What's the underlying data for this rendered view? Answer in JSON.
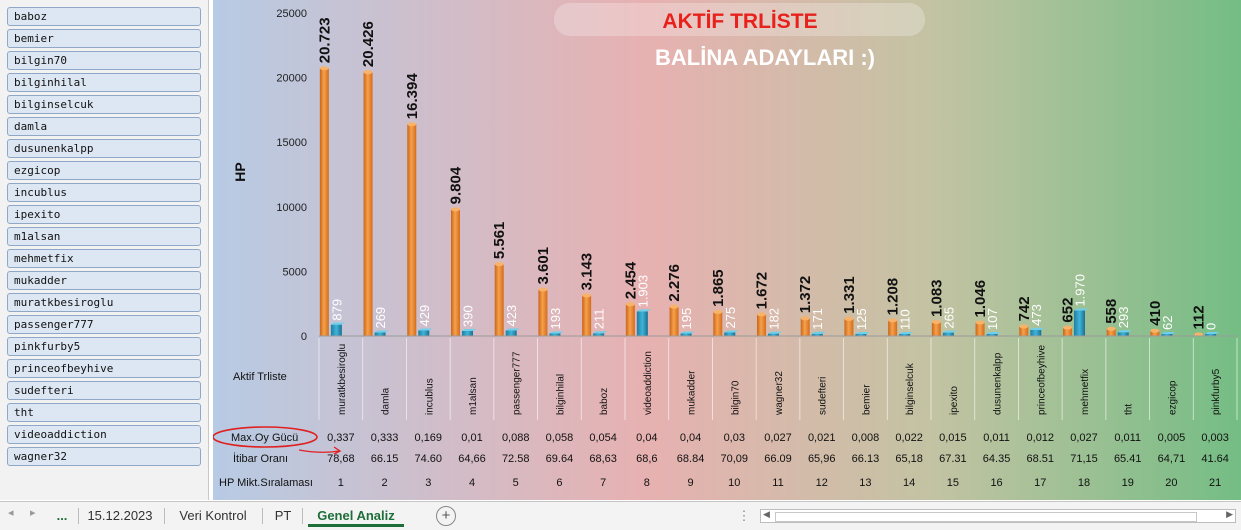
{
  "slicer": {
    "items": [
      "baboz",
      "bemier",
      "bilgin70",
      "bilginhilal",
      "bilginselcuk",
      "damla",
      "dusunenkalpp",
      "ezgicop",
      "incublus",
      "ipexito",
      "m1alsan",
      "mehmetfix",
      "mukadder",
      "muratkbesiroglu",
      "passenger777",
      "pinkfurby5",
      "princeofbeyhive",
      "sudefteri",
      "tht",
      "videoaddiction",
      "wagner32"
    ]
  },
  "chart_data": {
    "type": "bar",
    "title": "AKTİF TRLİSTE",
    "subtitle": "BALİNA ADAYLARI :)",
    "ylabel": "HP",
    "ylim": [
      0,
      25000
    ],
    "yticks": [
      "0",
      "5000",
      "10000",
      "15000",
      "20000",
      "25000"
    ],
    "grid": false,
    "categories": [
      "muratkbesiroglu",
      "damla",
      "incublus",
      "m1alsan",
      "passenger777",
      "bilginhilal",
      "baboz",
      "videoaddiction",
      "mukadder",
      "bilgin70",
      "wagner32",
      "sudefteri",
      "bemier",
      "bilginselcuk",
      "ipexito",
      "dusunenkalpp",
      "princeofbeyhive",
      "mehmetfix",
      "tht",
      "ezgicop",
      "pinkfurby5"
    ],
    "series": [
      {
        "values": [
          20723,
          20426,
          16394,
          9804,
          5561,
          3601,
          3143,
          2454,
          2276,
          1865,
          1672,
          1372,
          1331,
          1208,
          1083,
          1046,
          742,
          652,
          558,
          410,
          112
        ],
        "labels": [
          "20.723",
          "20.426",
          "16.394",
          "9.804",
          "5.561",
          "3.601",
          "3.143",
          "2.454",
          "2.276",
          "1.865",
          "1.672",
          "1.372",
          "1.331",
          "1.208",
          "1.083",
          "1.046",
          "742",
          "652",
          "558",
          "410",
          "112"
        ]
      },
      {
        "values": [
          879,
          269,
          429,
          390,
          423,
          193,
          211,
          1903,
          195,
          275,
          182,
          171,
          125,
          110,
          265,
          107,
          473,
          1970,
          293,
          62,
          0
        ],
        "labels": [
          "879",
          "269",
          "429",
          "390",
          "423",
          "193",
          "211",
          "1.903",
          "195",
          "275",
          "182",
          "171",
          "125",
          "110",
          "265",
          "107",
          "473",
          "1.970",
          "293",
          "62",
          "0"
        ]
      }
    ],
    "table": {
      "category_row_label": "Aktif Trliste",
      "rows": [
        {
          "label": "Max.Oy Gücü",
          "values": [
            "0,337",
            "0,333",
            "0,169",
            "0,01",
            "0,088",
            "0,058",
            "0,054",
            "0,04",
            "0,04",
            "0,03",
            "0,027",
            "0,021",
            "0,008",
            "0,022",
            "0,015",
            "0,011",
            "0,012",
            "0,027",
            "0,011",
            "0,005",
            "0,003"
          ]
        },
        {
          "label": "İtibar Oranı",
          "values": [
            "78,68",
            "66.15",
            "74.60",
            "64,66",
            "72.58",
            "69.64",
            "68,63",
            "68,6",
            "68.84",
            "70,09",
            "66.09",
            "65,96",
            "66.13",
            "65,18",
            "67.31",
            "64.35",
            "68.51",
            "71,15",
            "65.41",
            "64,71",
            "41.64"
          ]
        },
        {
          "label": "HP Mikt.Sıralaması",
          "values": [
            "1",
            "2",
            "3",
            "4",
            "5",
            "6",
            "7",
            "8",
            "9",
            "10",
            "11",
            "12",
            "13",
            "14",
            "15",
            "16",
            "17",
            "18",
            "19",
            "20",
            "21"
          ]
        }
      ]
    },
    "colors": {
      "primary": "#f08a24",
      "secondary": "#2e9cc2",
      "title": "#e8211c"
    }
  },
  "tabs": {
    "more": "...",
    "items": [
      "15.12.2023",
      "Veri Kontrol",
      "PT",
      "Genel Analiz"
    ],
    "active": "Genel Analiz",
    "add": "+"
  }
}
